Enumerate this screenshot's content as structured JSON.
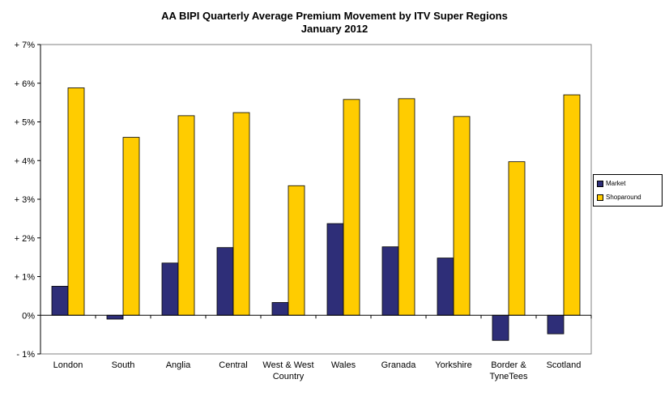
{
  "chart_data": {
    "type": "bar",
    "title": "AA BIPI Quarterly Average Premium Movement by ITV Super Regions",
    "subtitle": "January 2012",
    "categories": [
      [
        "London"
      ],
      [
        "South"
      ],
      [
        "Anglia"
      ],
      [
        "Central"
      ],
      [
        "West & West",
        "Country"
      ],
      [
        "Wales"
      ],
      [
        "Granada"
      ],
      [
        "Yorkshire"
      ],
      [
        "Border &",
        "TyneTees"
      ],
      [
        "Scotland"
      ]
    ],
    "series": [
      {
        "name": "Market",
        "color": "#2E2E78",
        "values": [
          0.75,
          -0.1,
          1.35,
          1.75,
          0.33,
          2.37,
          1.77,
          1.48,
          -0.65,
          -0.48
        ]
      },
      {
        "name": "Shoparound",
        "color": "#FFCC00",
        "values": [
          5.88,
          4.6,
          5.16,
          5.24,
          3.35,
          5.58,
          5.6,
          5.14,
          3.97,
          5.7
        ]
      }
    ],
    "ylim": [
      -1,
      7
    ],
    "yticks": [
      "- 1%",
      "0%",
      "+ 1%",
      "+ 2%",
      "+ 3%",
      "+ 4%",
      "+ 5%",
      "+ 6%",
      "+ 7%"
    ],
    "grid": false,
    "legend_position": "right"
  }
}
